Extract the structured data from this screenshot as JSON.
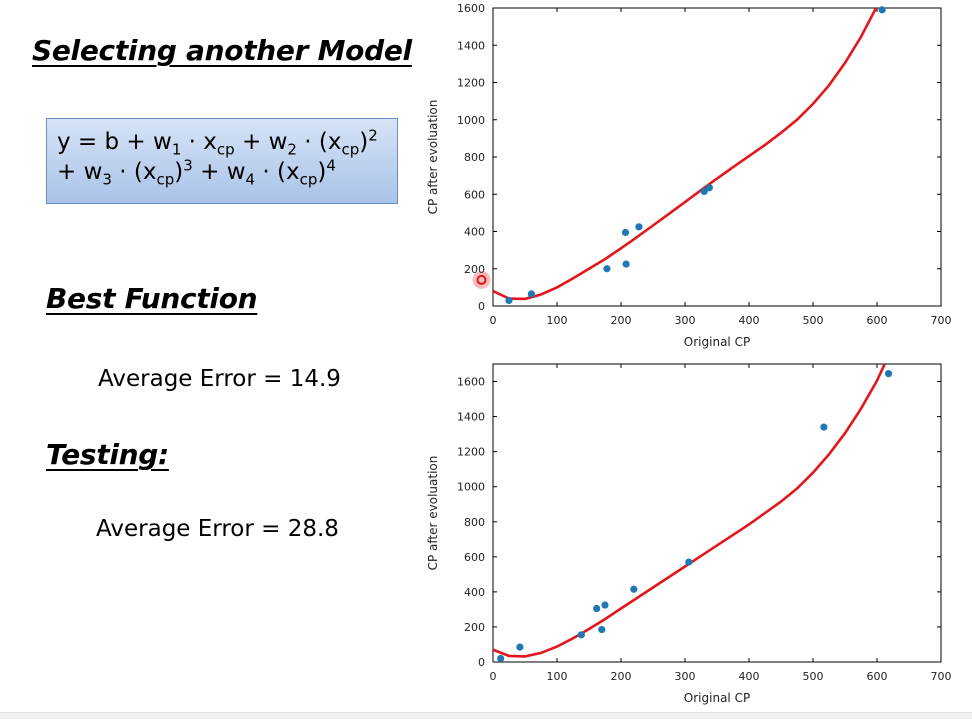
{
  "slide": {
    "title": "Selecting another Model",
    "formula": {
      "line1": [
        "y = b + w",
        "1",
        " · x",
        "cp",
        " + w",
        "2",
        " · (x",
        "cp",
        ")",
        "2"
      ],
      "line2": [
        "+ w",
        "3",
        " · (x",
        "cp",
        ")",
        "3",
        " + w",
        "4",
        " · (x",
        "cp",
        ")",
        "4"
      ]
    },
    "best_heading": "Best Function",
    "train_error": "Average Error = 14.9",
    "testing_heading": "Testing:",
    "test_error": "Average Error = 28.8"
  },
  "colors": {
    "points": "#1f77b4",
    "curve": "#e3171b",
    "cursor": "#e3171b",
    "formula_bg": "#b8cfee"
  },
  "chart_data": [
    {
      "type": "scatter",
      "xlabel": "Original CP",
      "ylabel": "CP after evoluation",
      "xlim": [
        0,
        700
      ],
      "ylim": [
        0,
        1600
      ],
      "xticks": [
        0,
        100,
        200,
        300,
        400,
        500,
        600,
        700
      ],
      "yticks": [
        0,
        200,
        400,
        600,
        800,
        1000,
        1200,
        1400,
        1600
      ],
      "points": [
        {
          "x": 25,
          "y": 30
        },
        {
          "x": 60,
          "y": 65
        },
        {
          "x": 178,
          "y": 200
        },
        {
          "x": 207,
          "y": 395
        },
        {
          "x": 208,
          "y": 225
        },
        {
          "x": 228,
          "y": 425
        },
        {
          "x": 330,
          "y": 615
        },
        {
          "x": 338,
          "y": 635
        },
        {
          "x": 608,
          "y": 1590
        }
      ],
      "curve": {
        "x": [
          0,
          25,
          50,
          75,
          100,
          125,
          150,
          175,
          200,
          225,
          250,
          275,
          300,
          325,
          350,
          375,
          400,
          425,
          450,
          475,
          500,
          525,
          550,
          575,
          600,
          615
        ],
        "y": [
          80,
          40,
          38,
          62,
          100,
          148,
          200,
          252,
          310,
          370,
          432,
          495,
          558,
          622,
          684,
          745,
          805,
          865,
          930,
          1000,
          1085,
          1185,
          1305,
          1445,
          1610,
          1700
        ]
      },
      "cursor": {
        "x": -18,
        "y": 140
      }
    },
    {
      "type": "scatter",
      "xlabel": "Original CP",
      "ylabel": "CP after evoluation",
      "xlim": [
        0,
        700
      ],
      "ylim": [
        0,
        1700
      ],
      "xticks": [
        0,
        100,
        200,
        300,
        400,
        500,
        600,
        700
      ],
      "yticks": [
        0,
        200,
        400,
        600,
        800,
        1000,
        1200,
        1400,
        1600
      ],
      "points": [
        {
          "x": 12,
          "y": 20
        },
        {
          "x": 42,
          "y": 85
        },
        {
          "x": 138,
          "y": 155
        },
        {
          "x": 162,
          "y": 305
        },
        {
          "x": 170,
          "y": 185
        },
        {
          "x": 175,
          "y": 325
        },
        {
          "x": 220,
          "y": 415
        },
        {
          "x": 306,
          "y": 570
        },
        {
          "x": 517,
          "y": 1340
        },
        {
          "x": 618,
          "y": 1645
        }
      ],
      "curve": {
        "x": [
          0,
          25,
          50,
          75,
          100,
          125,
          150,
          175,
          200,
          225,
          250,
          275,
          300,
          325,
          350,
          375,
          400,
          425,
          450,
          475,
          500,
          525,
          550,
          575,
          600,
          612
        ],
        "y": [
          70,
          35,
          32,
          52,
          88,
          135,
          188,
          245,
          305,
          365,
          425,
          485,
          545,
          605,
          665,
          725,
          785,
          850,
          915,
          990,
          1080,
          1185,
          1305,
          1445,
          1605,
          1700
        ]
      }
    }
  ]
}
